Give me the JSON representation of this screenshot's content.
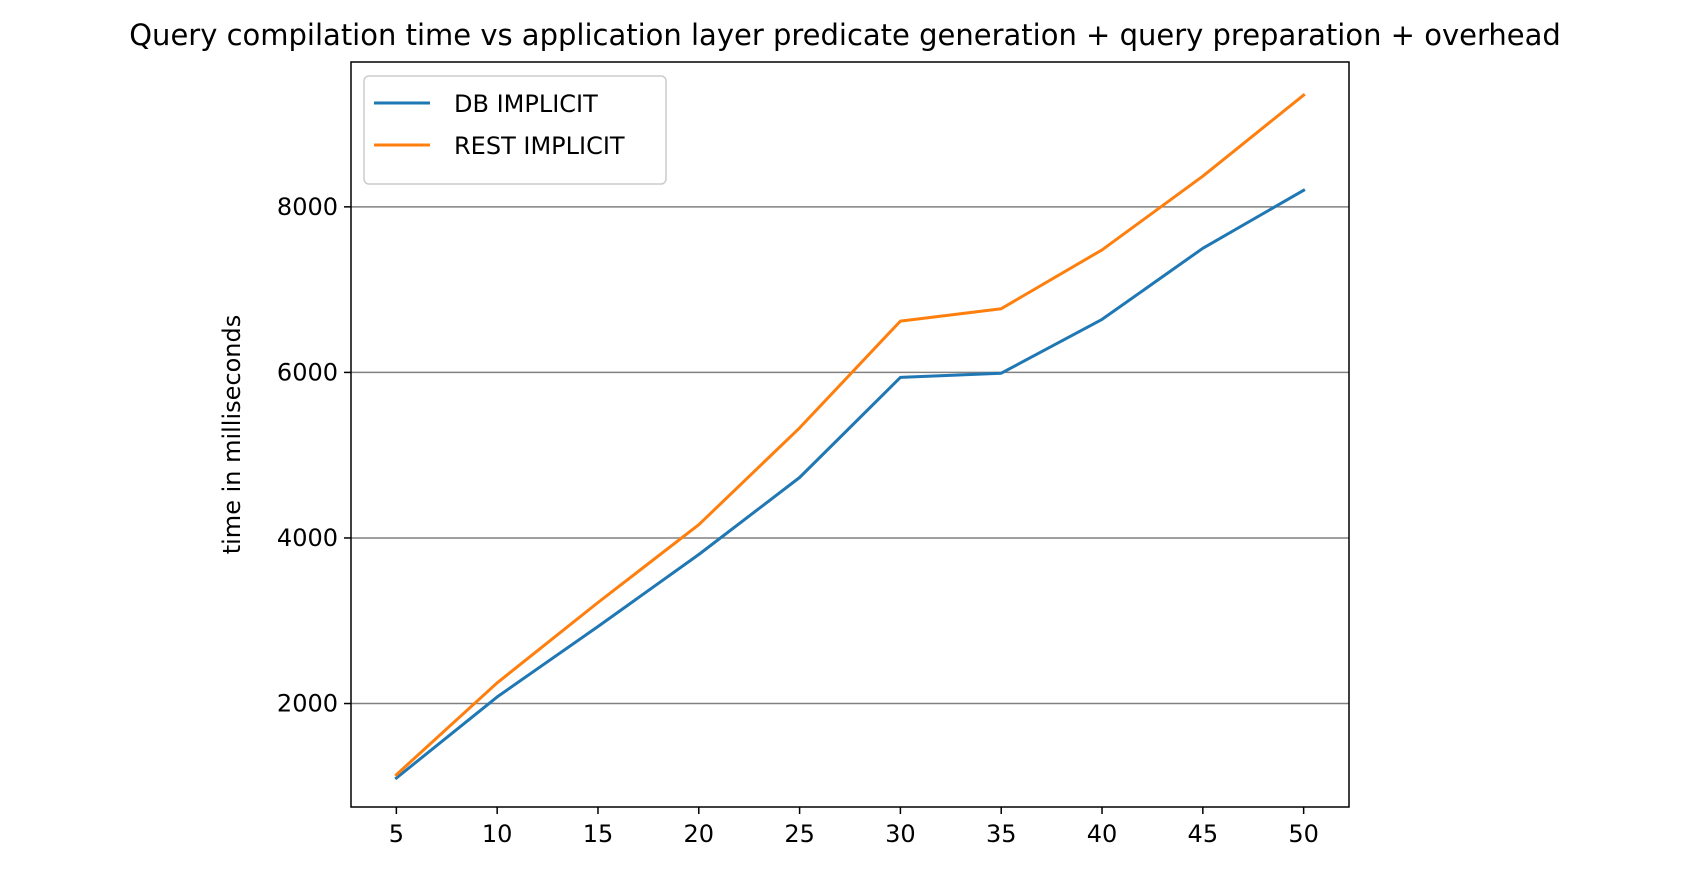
{
  "chart_data": {
    "type": "line",
    "title": "Query compilation time vs application layer predicate generation + query preparation + overhead",
    "xlabel": "",
    "ylabel": "time in milliseconds",
    "x": [
      5,
      10,
      15,
      20,
      25,
      30,
      35,
      40,
      45,
      50
    ],
    "xlim": [
      2.75,
      52.25
    ],
    "ylim": [
      750,
      9750
    ],
    "xticks": [
      5,
      10,
      15,
      20,
      25,
      30,
      35,
      40,
      45,
      50
    ],
    "yticks": [
      2000,
      4000,
      6000,
      8000
    ],
    "grid": "horizontal",
    "legend_position": "upper-left",
    "series": [
      {
        "name": "DB IMPLICIT",
        "color": "#1f77b4",
        "values": [
          1100,
          2080,
          2930,
          3800,
          4730,
          5940,
          5990,
          6640,
          7500,
          8200
        ]
      },
      {
        "name": "REST IMPLICIT",
        "color": "#ff7f0e",
        "values": [
          1140,
          2250,
          3220,
          4160,
          5330,
          6620,
          6770,
          7480,
          8370,
          9350
        ]
      }
    ]
  }
}
